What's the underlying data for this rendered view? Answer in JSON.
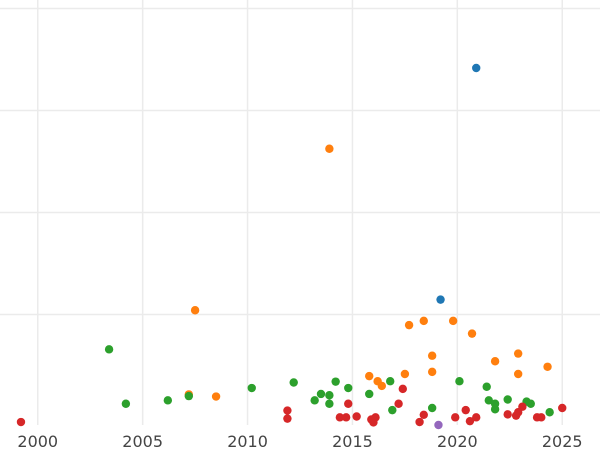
{
  "chart_data": {
    "type": "scatter",
    "title": "",
    "xlabel": "",
    "ylabel": "",
    "xlim": [
      1998.2,
      2026.8
    ],
    "ylim": [
      0,
      1
    ],
    "x_ticks": [
      2000,
      2005,
      2010,
      2015,
      2020,
      2025
    ],
    "x_tick_labels": [
      "2000",
      "2005",
      "2010",
      "2015",
      "2020",
      "2025"
    ],
    "y_gridlines": [
      0.26,
      0.5,
      0.74,
      0.98
    ],
    "y_tick_labels_visible": false,
    "grid": true,
    "legend": "none",
    "colors": {
      "blue": "#1f77b4",
      "orange": "#ff7f0e",
      "green": "#2ca02c",
      "red": "#d62728",
      "purple": "#9467bd"
    },
    "series": [
      {
        "color": "#1f77b4",
        "points": [
          {
            "x": 2020.9,
            "y": 0.84
          },
          {
            "x": 2019.2,
            "y": 0.295
          }
        ]
      },
      {
        "color": "#ff7f0e",
        "points": [
          {
            "x": 2013.9,
            "y": 0.65
          },
          {
            "x": 2007.5,
            "y": 0.27
          },
          {
            "x": 2008.5,
            "y": 0.067
          },
          {
            "x": 2007.2,
            "y": 0.072
          },
          {
            "x": 2015.8,
            "y": 0.115
          },
          {
            "x": 2016.2,
            "y": 0.103
          },
          {
            "x": 2016.4,
            "y": 0.092
          },
          {
            "x": 2017.5,
            "y": 0.12
          },
          {
            "x": 2017.7,
            "y": 0.235
          },
          {
            "x": 2018.4,
            "y": 0.245
          },
          {
            "x": 2018.8,
            "y": 0.163
          },
          {
            "x": 2018.8,
            "y": 0.125
          },
          {
            "x": 2019.8,
            "y": 0.245
          },
          {
            "x": 2020.7,
            "y": 0.215
          },
          {
            "x": 2021.8,
            "y": 0.15
          },
          {
            "x": 2022.9,
            "y": 0.168
          },
          {
            "x": 2022.9,
            "y": 0.12
          },
          {
            "x": 2024.3,
            "y": 0.137
          }
        ]
      },
      {
        "color": "#2ca02c",
        "points": [
          {
            "x": 2003.4,
            "y": 0.178
          },
          {
            "x": 2004.2,
            "y": 0.05
          },
          {
            "x": 2006.2,
            "y": 0.058
          },
          {
            "x": 2007.2,
            "y": 0.068
          },
          {
            "x": 2010.2,
            "y": 0.087
          },
          {
            "x": 2012.2,
            "y": 0.1
          },
          {
            "x": 2013.2,
            "y": 0.058
          },
          {
            "x": 2013.5,
            "y": 0.073
          },
          {
            "x": 2013.9,
            "y": 0.05
          },
          {
            "x": 2013.9,
            "y": 0.07
          },
          {
            "x": 2014.2,
            "y": 0.102
          },
          {
            "x": 2014.8,
            "y": 0.087
          },
          {
            "x": 2015.8,
            "y": 0.073
          },
          {
            "x": 2016.8,
            "y": 0.103
          },
          {
            "x": 2016.9,
            "y": 0.035
          },
          {
            "x": 2018.8,
            "y": 0.04
          },
          {
            "x": 2020.1,
            "y": 0.103
          },
          {
            "x": 2021.4,
            "y": 0.09
          },
          {
            "x": 2021.5,
            "y": 0.058
          },
          {
            "x": 2021.8,
            "y": 0.037
          },
          {
            "x": 2021.8,
            "y": 0.05
          },
          {
            "x": 2022.4,
            "y": 0.06
          },
          {
            "x": 2023.3,
            "y": 0.055
          },
          {
            "x": 2023.5,
            "y": 0.05
          },
          {
            "x": 2024.4,
            "y": 0.03
          }
        ]
      },
      {
        "color": "#d62728",
        "points": [
          {
            "x": 1999.2,
            "y": 0.007
          },
          {
            "x": 2011.9,
            "y": 0.034
          },
          {
            "x": 2011.9,
            "y": 0.015
          },
          {
            "x": 2014.4,
            "y": 0.018
          },
          {
            "x": 2014.7,
            "y": 0.018
          },
          {
            "x": 2014.8,
            "y": 0.05
          },
          {
            "x": 2015.2,
            "y": 0.02
          },
          {
            "x": 2015.9,
            "y": 0.013
          },
          {
            "x": 2016.0,
            "y": 0.006
          },
          {
            "x": 2016.1,
            "y": 0.018
          },
          {
            "x": 2017.2,
            "y": 0.05
          },
          {
            "x": 2017.4,
            "y": 0.085
          },
          {
            "x": 2018.2,
            "y": 0.007
          },
          {
            "x": 2018.4,
            "y": 0.024
          },
          {
            "x": 2019.9,
            "y": 0.018
          },
          {
            "x": 2020.4,
            "y": 0.035
          },
          {
            "x": 2020.6,
            "y": 0.009
          },
          {
            "x": 2020.9,
            "y": 0.018
          },
          {
            "x": 2022.4,
            "y": 0.025
          },
          {
            "x": 2022.8,
            "y": 0.022
          },
          {
            "x": 2022.9,
            "y": 0.03
          },
          {
            "x": 2023.1,
            "y": 0.043
          },
          {
            "x": 2023.8,
            "y": 0.018
          },
          {
            "x": 2024.0,
            "y": 0.018
          },
          {
            "x": 2025.0,
            "y": 0.04
          }
        ]
      },
      {
        "color": "#9467bd",
        "points": [
          {
            "x": 2019.1,
            "y": 0.0
          }
        ]
      }
    ]
  }
}
